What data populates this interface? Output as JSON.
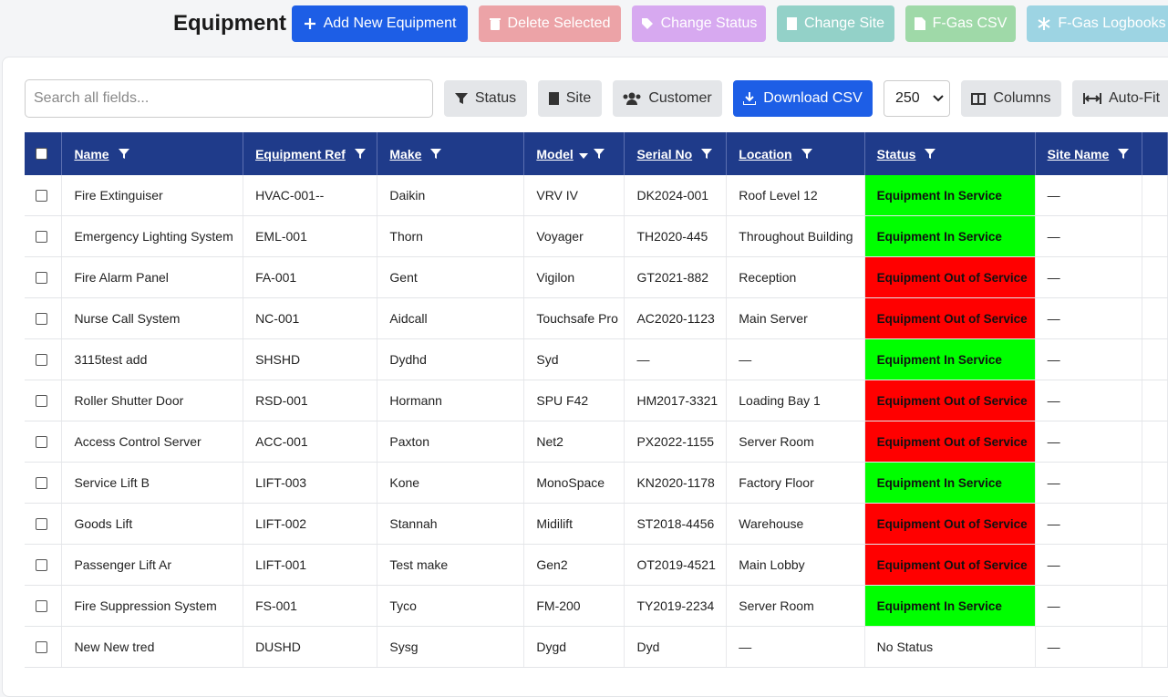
{
  "header": {
    "title": "Equipment",
    "actions": [
      "Add New Equipment",
      "Delete Selected",
      "Change Status",
      "Change Site",
      "F-Gas CSV",
      "F-Gas Logbooks"
    ]
  },
  "toolbar": {
    "search_placeholder": "Search all fields...",
    "filters": [
      "Status",
      "Site",
      "Customer"
    ],
    "download": "Download CSV",
    "page_size": "250",
    "columns": "Columns",
    "autofit": "Auto-Fit"
  },
  "table": {
    "columns": [
      "Name",
      "Equipment Ref",
      "Make",
      "Model",
      "Serial No",
      "Location",
      "Status",
      "Site Name"
    ],
    "rows": [
      {
        "cells": [
          "Fire Extinguiser",
          "HVAC-001--",
          "Daikin",
          "VRV IV",
          "DK2024-001",
          "Roof Level 12",
          "Equipment In Service",
          "—"
        ],
        "status_color": "#00ff00"
      },
      {
        "cells": [
          "Emergency Lighting System",
          "EML-001",
          "Thorn",
          "Voyager",
          "TH2020-445",
          "Throughout Building",
          "Equipment In Service",
          "—"
        ],
        "status_color": "#00ff00"
      },
      {
        "cells": [
          "Fire Alarm Panel",
          "FA-001",
          "Gent",
          "Vigilon",
          "GT2021-882",
          "Reception",
          "Equipment Out of Service",
          "—"
        ],
        "status_color": "#ff0000"
      },
      {
        "cells": [
          "Nurse Call System",
          "NC-001",
          "Aidcall",
          "Touchsafe Pro",
          "AC2020-1123",
          "Main Server",
          "Equipment Out of Service",
          "—"
        ],
        "status_color": "#ff0000"
      },
      {
        "cells": [
          "3115test add",
          "SHSHD",
          "Dydhd",
          "Syd",
          "—",
          "—",
          "Equipment In Service",
          "—"
        ],
        "status_color": "#00ff00"
      },
      {
        "cells": [
          "Roller Shutter Door",
          "RSD-001",
          "Hormann",
          "SPU F42",
          "HM2017-3321",
          "Loading Bay 1",
          "Equipment Out of Service",
          "—"
        ],
        "status_color": "#ff0000"
      },
      {
        "cells": [
          "Access Control Server",
          "ACC-001",
          "Paxton",
          "Net2",
          "PX2022-1155",
          "Server Room",
          "Equipment Out of Service",
          "—"
        ],
        "status_color": "#ff0000"
      },
      {
        "cells": [
          "Service Lift B",
          "LIFT-003",
          "Kone",
          "MonoSpace",
          "KN2020-1178",
          "Factory Floor",
          "Equipment In Service",
          "—"
        ],
        "status_color": "#00ff00"
      },
      {
        "cells": [
          "Goods Lift",
          "LIFT-002",
          "Stannah",
          "Midilift",
          "ST2018-4456",
          "Warehouse",
          "Equipment Out of Service",
          "—"
        ],
        "status_color": "#ff0000"
      },
      {
        "cells": [
          "Passenger Lift Ar",
          "LIFT-001",
          "Test make",
          "Gen2",
          "OT2019-4521",
          "Main Lobby",
          "Equipment Out of Service",
          "—"
        ],
        "status_color": "#ff0000"
      },
      {
        "cells": [
          "Fire Suppression System",
          "FS-001",
          "Tyco",
          "FM-200",
          "TY2019-2234",
          "Server Room",
          "Equipment In Service",
          "—"
        ],
        "status_color": "#00ff00"
      },
      {
        "cells": [
          "New New tred",
          "DUSHD",
          "Sysg",
          "Dygd",
          "Dyd",
          "—",
          "No Status",
          "—"
        ]
      }
    ]
  }
}
